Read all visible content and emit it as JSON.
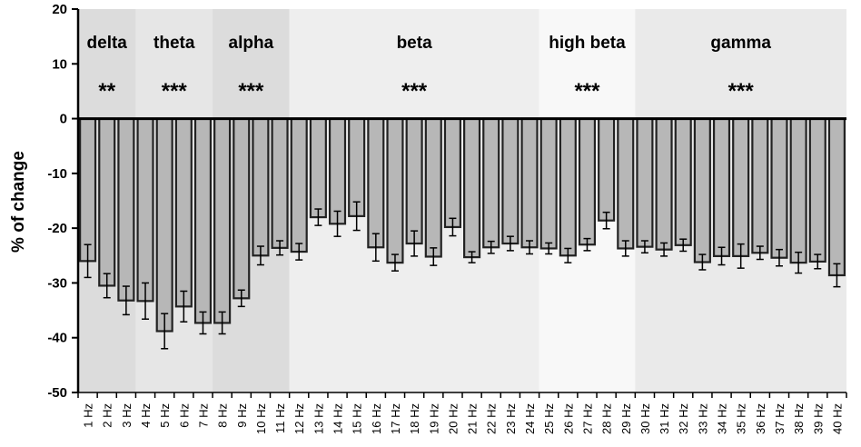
{
  "chart_data": {
    "type": "bar",
    "title": "",
    "xlabel": "",
    "ylabel": "% of change",
    "ylim": [
      -50,
      20
    ],
    "yticks": [
      20,
      10,
      0,
      -10,
      -20,
      -30,
      -40,
      -50
    ],
    "grid": false,
    "categories": [
      "1 Hz",
      "2 Hz",
      "3 Hz",
      "4 Hz",
      "5 Hz",
      "6 Hz",
      "7 Hz",
      "8 Hz",
      "9 Hz",
      "10 Hz",
      "11 Hz",
      "12 Hz",
      "13 Hz",
      "14 Hz",
      "15 Hz",
      "16 Hz",
      "17 Hz",
      "18 Hz",
      "19 Hz",
      "20 Hz",
      "21 Hz",
      "22 Hz",
      "23 Hz",
      "24 Hz",
      "25 Hz",
      "26 Hz",
      "27 Hz",
      "28 Hz",
      "29 Hz",
      "30 Hz",
      "31 Hz",
      "32 Hz",
      "33 Hz",
      "34 Hz",
      "35 Hz",
      "36 Hz",
      "37 Hz",
      "38 Hz",
      "39 Hz",
      "40 Hz"
    ],
    "values": [
      -26.0,
      -30.5,
      -33.2,
      -33.3,
      -38.8,
      -34.3,
      -37.3,
      -37.3,
      -32.8,
      -25.0,
      -23.6,
      -24.3,
      -18.0,
      -19.2,
      -17.8,
      -23.5,
      -26.3,
      -22.8,
      -25.2,
      -19.8,
      -25.3,
      -23.5,
      -22.8,
      -23.5,
      -23.7,
      -25.0,
      -23.0,
      -18.6,
      -23.7,
      -23.4,
      -23.9,
      -23.1,
      -26.2,
      -25.1,
      -25.1,
      -24.5,
      -25.4,
      -26.3,
      -26.1,
      -28.6
    ],
    "errors": [
      3.0,
      2.2,
      2.6,
      3.3,
      3.2,
      2.8,
      2.0,
      2.0,
      1.5,
      1.7,
      1.3,
      1.5,
      1.5,
      2.3,
      2.6,
      2.5,
      1.5,
      2.3,
      1.6,
      1.6,
      1.0,
      1.1,
      1.3,
      1.2,
      1.0,
      1.3,
      1.1,
      1.5,
      1.4,
      1.1,
      1.2,
      1.1,
      1.4,
      1.6,
      2.2,
      1.2,
      1.5,
      1.9,
      1.3,
      2.1
    ],
    "bar_color": "#b7b7b7",
    "bar_edge_color": "#222222",
    "bands": [
      {
        "name": "delta",
        "significance": "**",
        "from": 1,
        "to": 3,
        "color": "#dcdcdc"
      },
      {
        "name": "theta",
        "significance": "***",
        "from": 4,
        "to": 7,
        "color": "#e6e6e6"
      },
      {
        "name": "alpha",
        "significance": "***",
        "from": 8,
        "to": 11,
        "color": "#dcdcdc"
      },
      {
        "name": "beta",
        "significance": "***",
        "from": 12,
        "to": 24,
        "color": "#eeeeee"
      },
      {
        "name": "high beta",
        "significance": "***",
        "from": 25,
        "to": 29,
        "color": "#f8f8f8"
      },
      {
        "name": "gamma",
        "significance": "***",
        "from": 30,
        "to": 40,
        "color": "#eaeaea"
      }
    ]
  }
}
